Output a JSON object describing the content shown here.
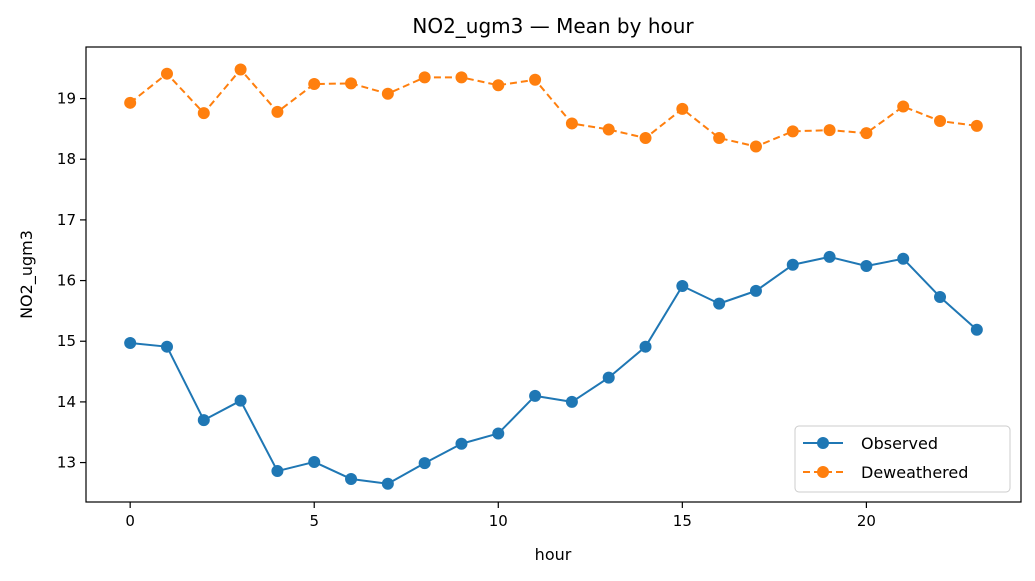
{
  "chart_data": {
    "type": "line",
    "title": "NO2_ugm3 — Mean by hour",
    "xlabel": "hour",
    "ylabel": "NO2_ugm3",
    "xlim": [
      -1.2,
      24.2
    ],
    "ylim": [
      12.35,
      19.85
    ],
    "xticks": [
      0,
      5,
      10,
      15,
      20
    ],
    "yticks": [
      13,
      14,
      15,
      16,
      17,
      18,
      19
    ],
    "grid": false,
    "legend_position": "lower-right",
    "x": [
      0,
      1,
      2,
      3,
      4,
      5,
      6,
      7,
      8,
      9,
      10,
      11,
      12,
      13,
      14,
      15,
      16,
      17,
      18,
      19,
      20,
      21,
      22,
      23
    ],
    "series": [
      {
        "name": "Observed",
        "color": "#1f77b4",
        "line_style": "solid",
        "marker": "circle",
        "values": [
          14.97,
          14.91,
          13.7,
          14.02,
          12.86,
          13.01,
          12.73,
          12.65,
          12.99,
          13.31,
          13.48,
          14.1,
          14.0,
          14.4,
          14.91,
          15.91,
          15.62,
          15.83,
          16.26,
          16.39,
          16.24,
          16.36,
          15.73,
          15.19
        ]
      },
      {
        "name": "Deweathered",
        "color": "#ff7f0e",
        "line_style": "dashed",
        "marker": "circle",
        "values": [
          18.93,
          19.41,
          18.76,
          19.48,
          18.78,
          19.24,
          19.25,
          19.08,
          19.35,
          19.35,
          19.22,
          19.31,
          18.59,
          18.49,
          18.35,
          18.83,
          18.35,
          18.21,
          18.46,
          18.48,
          18.43,
          18.87,
          18.63,
          18.55
        ]
      }
    ]
  }
}
